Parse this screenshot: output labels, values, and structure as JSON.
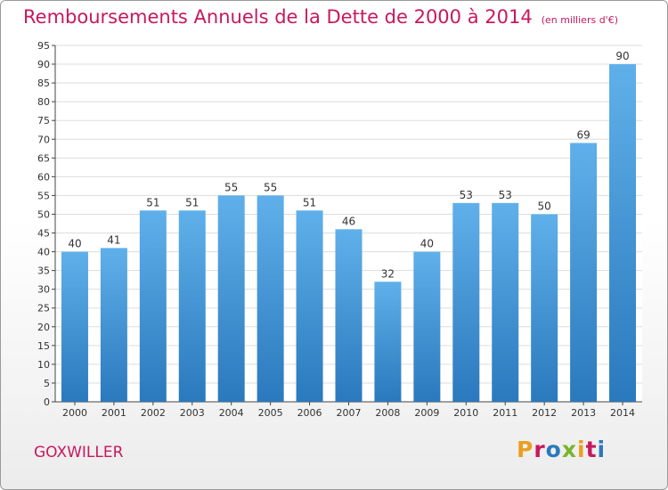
{
  "header": {
    "title": "Remboursements Annuels de la Dette de 2000 à 2014",
    "subtitle": "(en milliers d'€)"
  },
  "footer": {
    "commune": "GOXWILLER",
    "logo": "Proxiti"
  },
  "colors": {
    "bar_light": "#5fb0ea",
    "bar_dark": "#2a79bd",
    "title": "#c8185e",
    "logo_letters": [
      "#e8a020",
      "#c8185e",
      "#2a79bd",
      "#7ab42c",
      "#e8a020",
      "#c8185e",
      "#2a79bd"
    ]
  },
  "chart_data": {
    "type": "bar",
    "title": "Remboursements Annuels de la Dette de 2000 à 2014",
    "subtitle": "(en milliers d'€)",
    "categories": [
      "2000",
      "2001",
      "2002",
      "2003",
      "2004",
      "2005",
      "2006",
      "2007",
      "2008",
      "2009",
      "2010",
      "2011",
      "2012",
      "2013",
      "2014"
    ],
    "values": [
      40,
      41,
      51,
      51,
      55,
      55,
      51,
      46,
      32,
      40,
      53,
      53,
      50,
      69,
      90
    ],
    "ylim": [
      0,
      95
    ],
    "yticks": [
      0,
      5,
      10,
      15,
      20,
      25,
      30,
      35,
      40,
      45,
      50,
      55,
      60,
      65,
      70,
      75,
      80,
      85,
      90,
      95
    ],
    "grid": true,
    "legend": "none"
  }
}
